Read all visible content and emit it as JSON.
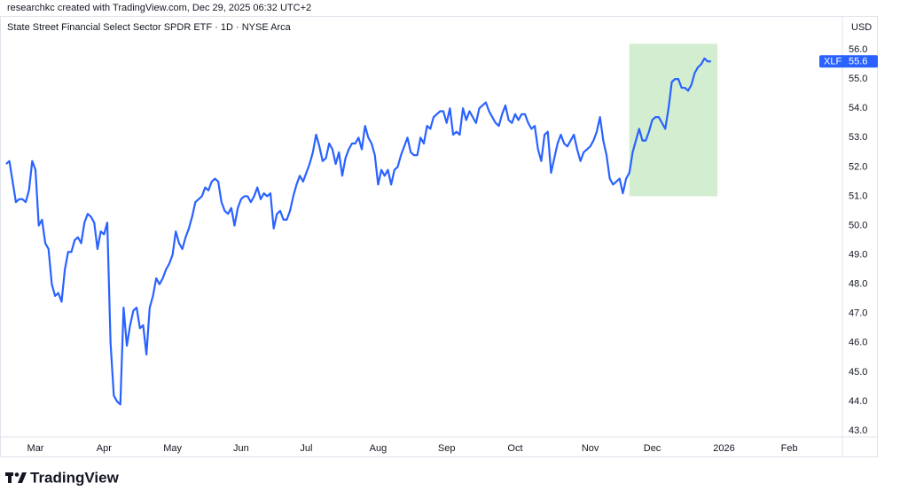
{
  "header": "researchkc created with TradingView.com, Dec 29, 2025 06:32 UTC+2",
  "brand": "TradingView",
  "chart_data": {
    "type": "line",
    "title": "State Street Financial Select Sector SPDR ETF · 1D · NYSE Arca",
    "y_unit": "USD",
    "categories": [
      null,
      null,
      null,
      null,
      null,
      null,
      null,
      null,
      null,
      "Mar",
      null,
      null,
      null,
      null,
      null,
      null,
      null,
      null,
      null,
      null,
      null,
      null,
      null,
      null,
      null,
      null,
      null,
      null,
      null,
      null,
      "Apr",
      null,
      null,
      null,
      null,
      null,
      null,
      null,
      null,
      null,
      null,
      null,
      null,
      null,
      null,
      null,
      null,
      null,
      null,
      null,
      null,
      "May",
      null,
      null,
      null,
      null,
      null,
      null,
      null,
      null,
      null,
      null,
      null,
      null,
      null,
      null,
      null,
      null,
      null,
      null,
      null,
      null,
      "Jun",
      null,
      null,
      null,
      null,
      null,
      null,
      null,
      null,
      null,
      null,
      null,
      null,
      null,
      null,
      null,
      null,
      null,
      null,
      null,
      "Jul",
      null,
      null,
      null,
      null,
      null,
      null,
      null,
      null,
      null,
      null,
      null,
      null,
      null,
      null,
      null,
      null,
      null,
      null,
      null,
      null,
      null,
      "Aug",
      null,
      null,
      null,
      null,
      null,
      null,
      null,
      null,
      null,
      null,
      null,
      null,
      null,
      null,
      null,
      null,
      null,
      null,
      null,
      null,
      "Sep",
      null,
      null,
      null,
      null,
      null,
      null,
      null,
      null,
      null,
      null,
      null,
      null,
      null,
      null,
      null,
      null,
      null,
      null,
      null,
      null,
      "Oct",
      null,
      null,
      null,
      null,
      null,
      null,
      null,
      null,
      null,
      null,
      null,
      null,
      null,
      null,
      null,
      null,
      null,
      null,
      null,
      null,
      null,
      null,
      "Nov",
      null,
      null,
      null,
      null,
      null,
      null,
      null,
      null,
      null,
      null,
      null,
      null,
      null,
      null,
      null,
      null,
      null,
      null,
      "Dec",
      null,
      null,
      null,
      null,
      null,
      null,
      null,
      null,
      null,
      null,
      null,
      null,
      null,
      null,
      null,
      null,
      null,
      null,
      null,
      null,
      null,
      "2026",
      null,
      null,
      null,
      null,
      null,
      null,
      null,
      null,
      null,
      null,
      null,
      null,
      null,
      null,
      null,
      null,
      null,
      null,
      null,
      "Feb"
    ],
    "series": [
      {
        "name": "XLF",
        "color": "#2962ff",
        "values": [
          52.1,
          52.2,
          51.5,
          50.8,
          50.9,
          50.9,
          50.8,
          51.2,
          52.2,
          51.9,
          50.0,
          50.2,
          49.4,
          49.2,
          48.0,
          47.6,
          47.7,
          47.4,
          48.5,
          49.1,
          49.1,
          49.5,
          49.6,
          49.4,
          50.1,
          50.4,
          50.3,
          50.1,
          49.2,
          49.8,
          49.7,
          50.1,
          46.0,
          44.2,
          44.0,
          43.9,
          47.2,
          45.9,
          46.6,
          47.1,
          47.2,
          46.5,
          46.6,
          45.6,
          47.2,
          47.6,
          48.2,
          48.0,
          48.2,
          48.5,
          48.7,
          49.0,
          49.8,
          49.4,
          49.2,
          49.6,
          49.9,
          50.3,
          50.8,
          50.9,
          51.0,
          51.3,
          51.2,
          51.5,
          51.6,
          51.5,
          50.8,
          50.5,
          50.4,
          50.6,
          50.0,
          50.6,
          50.9,
          51.0,
          51.0,
          50.8,
          51.0,
          51.3,
          50.9,
          51.1,
          51.0,
          51.1,
          49.9,
          50.4,
          50.5,
          50.2,
          50.2,
          50.5,
          51.0,
          51.4,
          51.7,
          51.5,
          51.8,
          52.1,
          52.5,
          53.1,
          52.7,
          52.2,
          52.3,
          52.8,
          52.6,
          52.1,
          52.5,
          51.7,
          52.3,
          52.6,
          52.8,
          52.8,
          53.0,
          52.6,
          53.4,
          53.0,
          52.8,
          52.4,
          51.4,
          51.9,
          51.7,
          51.9,
          51.4,
          51.9,
          52.0,
          52.4,
          52.7,
          53.0,
          52.5,
          52.4,
          52.4,
          53.0,
          52.8,
          53.4,
          53.3,
          53.7,
          53.8,
          53.9,
          53.9,
          53.5,
          54.0,
          53.1,
          53.2,
          53.1,
          54.0,
          53.6,
          53.9,
          53.7,
          53.5,
          54.0,
          54.1,
          54.2,
          53.9,
          53.7,
          53.5,
          53.4,
          53.8,
          54.1,
          53.6,
          53.5,
          53.8,
          53.6,
          53.8,
          53.8,
          53.5,
          53.3,
          53.4,
          52.6,
          52.2,
          53.1,
          53.2,
          51.8,
          52.3,
          52.8,
          53.1,
          52.8,
          52.7,
          52.9,
          53.1,
          52.6,
          52.2,
          52.5,
          52.6,
          52.7,
          52.9,
          53.2,
          53.7,
          52.9,
          52.4,
          51.6,
          51.4,
          51.5,
          51.6,
          51.1,
          51.6,
          51.8,
          52.5,
          52.9,
          53.3,
          52.9,
          52.9,
          53.2,
          53.6,
          53.7,
          53.7,
          53.5,
          53.3,
          54.0,
          54.9,
          55.0,
          55.0,
          54.7,
          54.7,
          54.6,
          54.8,
          55.2,
          55.4,
          55.5,
          55.7,
          55.6,
          55.6,
          null,
          null,
          null,
          null,
          null,
          null,
          null,
          null,
          null,
          null,
          null,
          null,
          null,
          null,
          null,
          null,
          null,
          null,
          null,
          null,
          null,
          null,
          null,
          null
        ]
      }
    ],
    "ylim": [
      42.82,
      57.09
    ],
    "yticks": [
      {
        "value": 43,
        "label": "43.0"
      },
      {
        "value": 44,
        "label": "44.0"
      },
      {
        "value": 45,
        "label": "45.0"
      },
      {
        "value": 46,
        "label": "46.0"
      },
      {
        "value": 47,
        "label": "47.0"
      },
      {
        "value": 48,
        "label": "48.0"
      },
      {
        "value": 49,
        "label": "49.0"
      },
      {
        "value": 50,
        "label": "50.0"
      },
      {
        "value": 51,
        "label": "51.0"
      },
      {
        "value": 52,
        "label": "52.0"
      },
      {
        "value": 53,
        "label": "53.0"
      },
      {
        "value": 54,
        "label": "54.0"
      },
      {
        "value": 55,
        "label": "55.0"
      },
      {
        "value": 56,
        "label": "56.0"
      }
    ],
    "grid": false,
    "highlight": {
      "start": 191,
      "end": 218,
      "low": 51.0,
      "high": 56.2,
      "color": "#d3edd1"
    }
  }
}
